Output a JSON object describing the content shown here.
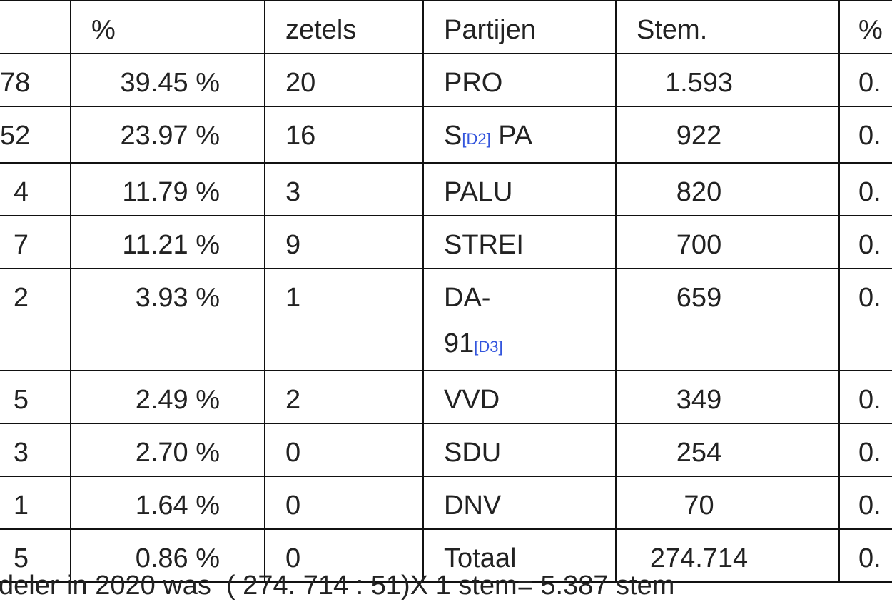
{
  "table": {
    "header": {
      "pct": "%",
      "seats": "zetels",
      "party": "Partijen",
      "votes": "Stem.",
      "pct2": "%"
    },
    "rows": [
      {
        "cut": "78",
        "pct": "39.45 %",
        "seats": "20",
        "party": [
          "PRO"
        ],
        "votes": "1.593",
        "cut2": "0."
      },
      {
        "cut": "52",
        "pct": "23.97 %",
        "seats": "16",
        "party": [
          "S"
        ],
        "party_ref": "[D2]",
        "party_after": "PA",
        "votes": "922",
        "cut2": "0."
      },
      {
        "cut": "4",
        "pct": "11.79 %",
        "seats": "3",
        "party": [
          "PALU"
        ],
        "votes": "820",
        "cut2": "0."
      },
      {
        "cut": "7",
        "pct": "11.21 %",
        "seats": "9",
        "party": [
          "STREI"
        ],
        "votes": "700",
        "cut2": "0."
      },
      {
        "cut": "2",
        "pct": "3.93 %",
        "seats": "1",
        "party": [
          "DA-",
          "91"
        ],
        "party_ref": "[D3]",
        "votes": "659",
        "cut2": "0."
      },
      {
        "cut": "5",
        "pct": "2.49 %",
        "seats": "2",
        "party": [
          "VVD"
        ],
        "votes": "349",
        "cut2": "0."
      },
      {
        "cut": "3",
        "pct": "2.70 %",
        "seats": "0",
        "party": [
          "SDU"
        ],
        "votes": "254",
        "cut2": "0."
      },
      {
        "cut": "1",
        "pct": "1.64 %",
        "seats": "0",
        "party": [
          "DNV"
        ],
        "votes": "70",
        "cut2": "0."
      },
      {
        "cut": "5",
        "pct": "0.86 %",
        "seats": "0",
        "party": [
          "Totaal"
        ],
        "votes": "274.714",
        "cut2": "0."
      }
    ]
  },
  "footer": "deler in 2020 was  ( 274. 714 : 51)X 1 stem= 5.387 stem"
}
